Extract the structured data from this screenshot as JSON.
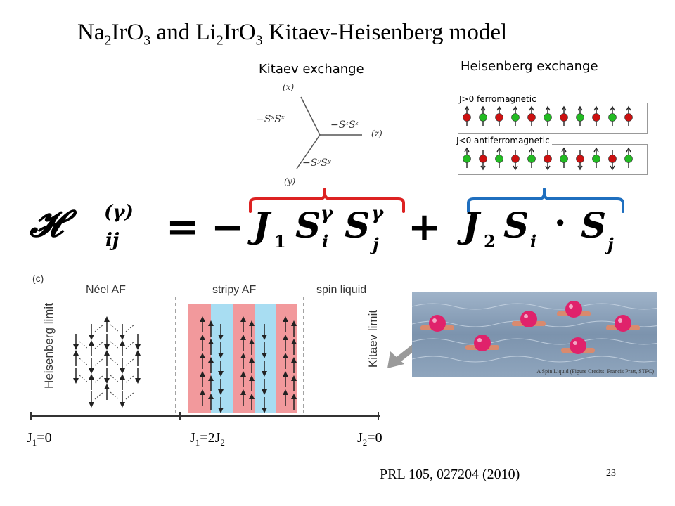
{
  "title": {
    "na": "Na",
    "na_sub": "2",
    "ir1": "IrO",
    "ir1_sub": "3",
    "and": " and ",
    "li": "Li",
    "li_sub": "2",
    "ir2": "IrO",
    "ir2_sub": "3",
    "rest": " Kitaev-Heisenberg model"
  },
  "kitaev": {
    "heading": "Kitaev exchange",
    "x_label": "(x)",
    "y_label": "(y)",
    "z_label": "(z)",
    "term_x": "−SˣSˣ",
    "term_y": "−SʸSʸ",
    "term_z": "−SᶻSᶻ"
  },
  "heisenberg": {
    "heading": "Heisenberg exchange",
    "ferro_label": "J>0 ferromagnetic",
    "antiferro_label": "J<0 antiferromagnetic",
    "colors": {
      "red": "#cc1111",
      "green": "#22bb22"
    }
  },
  "hamiltonian": {
    "H": "𝓗",
    "sup": "(γ)",
    "sub": "ij",
    "equals": "=",
    "minus": "−",
    "plus": "+",
    "J1": "J",
    "J1_sub": "1",
    "S": "S",
    "gamma": "γ",
    "i": "i",
    "j": "j",
    "J2": "J",
    "J2_sub": "2",
    "dot": "·",
    "brace_red": "#dd2222",
    "brace_blue": "#1f6fbf"
  },
  "phase_diagram": {
    "panel_label": "(c)",
    "neel": "Néel AF",
    "stripy": "stripy AF",
    "spin_liquid": "spin liquid",
    "heisenberg_limit": "Heisenberg limit",
    "kitaev_limit": "Kitaev limit",
    "stripe_colors": {
      "pink": "#f2999c",
      "blue": "#a8ddf2"
    }
  },
  "axis_labels": {
    "left": "J",
    "left_sub": "1",
    "left_tail": "=0",
    "mid_a": "J",
    "mid_a_sub": "1",
    "mid_b": "=2J",
    "mid_b_sub": "2",
    "right": "J",
    "right_sub": "2",
    "right_tail": "=0"
  },
  "image_credit": "A Spin Liquid (Figure Credits: Francis Pratt, STFC)",
  "reference": "PRL 105, 027204 (2010)",
  "page_number": "23"
}
